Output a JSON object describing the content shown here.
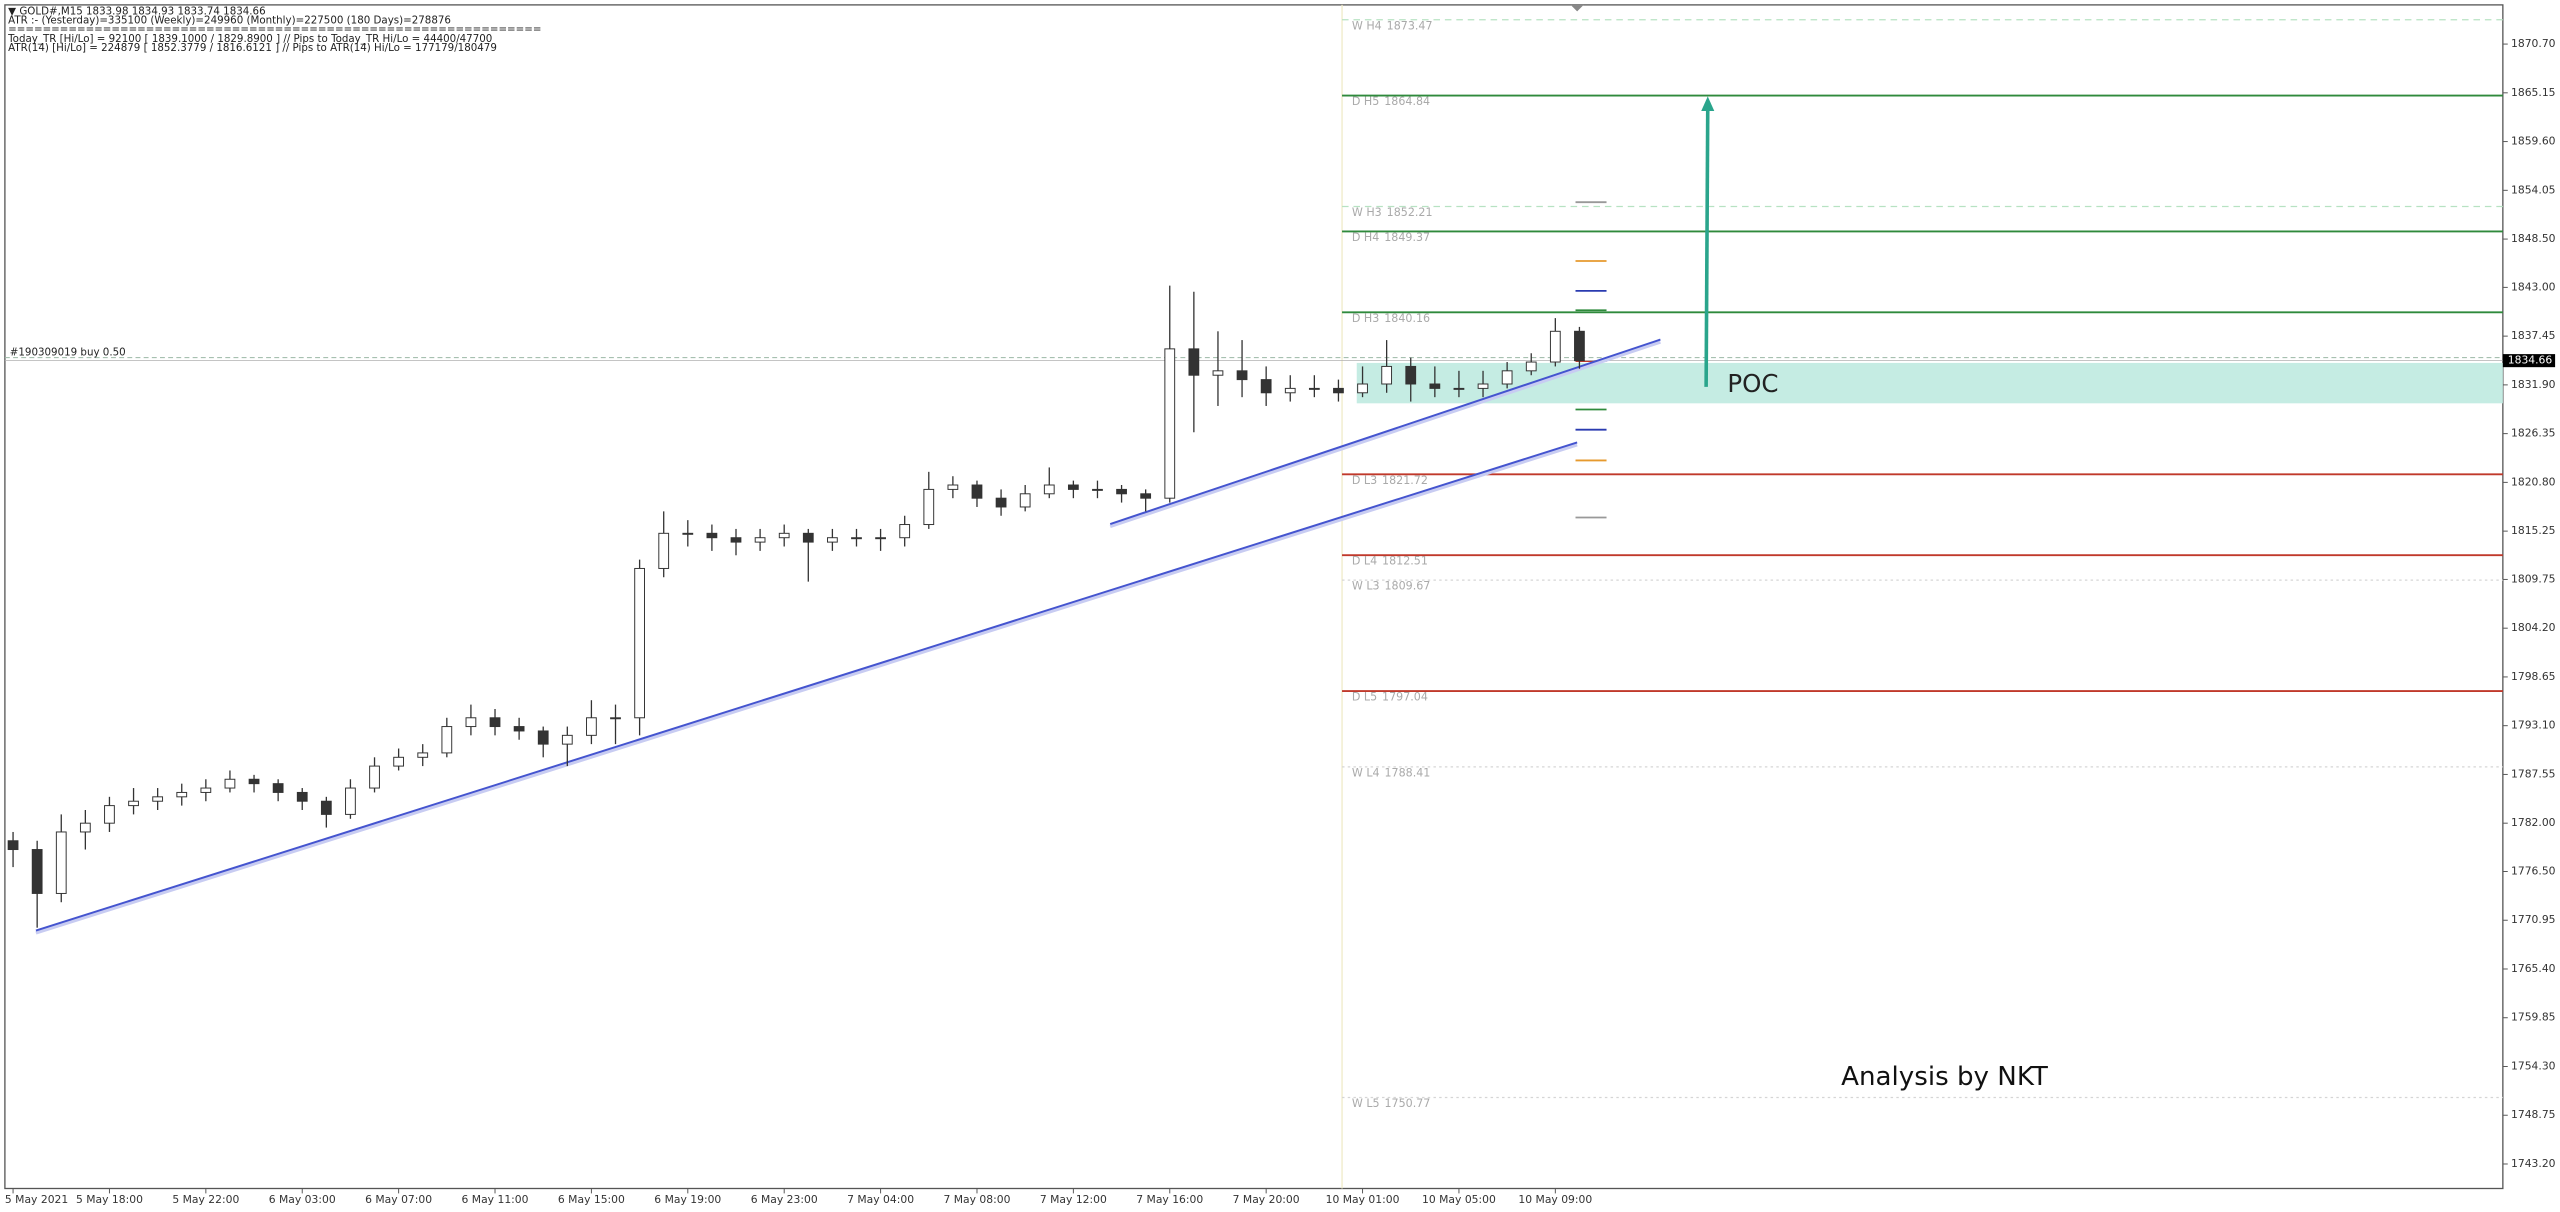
{
  "chart_data": {
    "type": "candlestick",
    "info_lines": [
      "▼ GOLD#,M15  1833.98 1834.93 1833.74 1834.66",
      "ATR :- (Yesterday)=335100     (Weekly)=249960     (Monthly)=227500     (180 Days)=278876",
      "==============================================================",
      "Today_TR [Hi/Lo] = 92100 [ 1839.1000 / 1829.8900 ]  // Pips to Today_TR Hi/Lo  = 44400/47700",
      "ATR(14)     [Hi/Lo] = 224879 [ 1852.3779 / 1816.6121 ]  // Pips to ATR(14) Hi/Lo      = 177179/180479"
    ],
    "categories": [
      "5 May 2021",
      null,
      null,
      null,
      "5 May 18:00",
      null,
      null,
      null,
      "5 May 22:00",
      null,
      null,
      null,
      "6 May 03:00",
      null,
      null,
      null,
      "6 May 07:00",
      null,
      null,
      null,
      "6 May 11:00",
      null,
      null,
      null,
      "6 May 15:00",
      null,
      null,
      null,
      "6 May 19:00",
      null,
      null,
      null,
      "6 May 23:00",
      null,
      null,
      null,
      "7 May 04:00",
      null,
      null,
      null,
      "7 May 08:00",
      null,
      null,
      null,
      "7 May 12:00",
      null,
      null,
      null,
      "7 May 16:00",
      null,
      null,
      null,
      "7 May 20:00",
      null,
      null,
      null,
      "10 May 01:00",
      null,
      null,
      null,
      "10 May 05:00",
      null,
      null,
      null,
      "10 May 09:00",
      null
    ],
    "candles": [
      [
        1780,
        1781,
        1777,
        1779
      ],
      [
        1779,
        1780,
        1770.1,
        1774
      ],
      [
        1774,
        1783,
        1773,
        1781
      ],
      [
        1781,
        1783.5,
        1779,
        1782
      ],
      [
        1782,
        1785,
        1781,
        1784
      ],
      [
        1784,
        1786,
        1783,
        1784.5
      ],
      [
        1784.5,
        1786,
        1783.5,
        1785
      ],
      [
        1785,
        1786.5,
        1784,
        1785.5
      ],
      [
        1785.5,
        1787,
        1784.5,
        1786
      ],
      [
        1786,
        1788,
        1785.5,
        1787
      ],
      [
        1787,
        1787.5,
        1785.5,
        1786.5
      ],
      [
        1786.5,
        1787,
        1784.5,
        1785.5
      ],
      [
        1785.5,
        1786,
        1783.5,
        1784.5
      ],
      [
        1784.5,
        1785,
        1781.5,
        1783
      ],
      [
        1783,
        1787,
        1782.5,
        1786
      ],
      [
        1786,
        1789.5,
        1785.5,
        1788.5
      ],
      [
        1788.5,
        1790.5,
        1788,
        1789.5
      ],
      [
        1789.5,
        1791,
        1788.5,
        1790
      ],
      [
        1790,
        1794,
        1789.5,
        1793
      ],
      [
        1793,
        1795.5,
        1792,
        1794
      ],
      [
        1794,
        1795,
        1792,
        1793
      ],
      [
        1793,
        1794,
        1791.5,
        1792.5
      ],
      [
        1792.5,
        1793,
        1789.5,
        1791
      ],
      [
        1791,
        1793,
        1788.5,
        1792
      ],
      [
        1792,
        1796,
        1791,
        1794
      ],
      [
        1794,
        1795.5,
        1791,
        1794
      ],
      [
        1794,
        1812,
        1792,
        1811
      ],
      [
        1811,
        1817.5,
        1810,
        1815
      ],
      [
        1815,
        1816.5,
        1813.5,
        1815
      ],
      [
        1815,
        1816,
        1813,
        1814.5
      ],
      [
        1814.5,
        1815.5,
        1812.5,
        1814
      ],
      [
        1814,
        1815.5,
        1813,
        1814.5
      ],
      [
        1814.5,
        1816,
        1813.5,
        1815
      ],
      [
        1815,
        1815.5,
        1809.5,
        1814
      ],
      [
        1814,
        1815.5,
        1813,
        1814.5
      ],
      [
        1814.5,
        1815.5,
        1813.5,
        1814.5
      ],
      [
        1814.5,
        1815.5,
        1813,
        1814.5
      ],
      [
        1814.5,
        1817,
        1813.5,
        1816
      ],
      [
        1816,
        1822,
        1815.5,
        1820
      ],
      [
        1820,
        1821.5,
        1819,
        1820.5
      ],
      [
        1820.5,
        1821,
        1818,
        1819
      ],
      [
        1819,
        1820,
        1817,
        1818
      ],
      [
        1818,
        1820.5,
        1817.5,
        1819.5
      ],
      [
        1819.5,
        1822.5,
        1819,
        1820.5
      ],
      [
        1820.5,
        1821,
        1819,
        1820
      ],
      [
        1820,
        1821,
        1819,
        1820
      ],
      [
        1820,
        1820.5,
        1818.5,
        1819.5
      ],
      [
        1819.5,
        1820,
        1817.5,
        1819
      ],
      [
        1819,
        1843.2,
        1818.5,
        1836
      ],
      [
        1836,
        1842.5,
        1826.5,
        1833
      ],
      [
        1833,
        1838,
        1829.5,
        1833.5
      ],
      [
        1833.5,
        1837,
        1830.5,
        1832.5
      ],
      [
        1832.5,
        1834,
        1829.5,
        1831
      ],
      [
        1831,
        1833,
        1830,
        1831.5
      ],
      [
        1831.5,
        1833,
        1830.5,
        1831.5
      ],
      [
        1831.5,
        1832.5,
        1830,
        1831
      ],
      [
        1831,
        1834,
        1830.5,
        1832
      ],
      [
        1832,
        1837,
        1831,
        1834
      ],
      [
        1834,
        1835,
        1830,
        1832
      ],
      [
        1832,
        1834,
        1830.5,
        1831.5
      ],
      [
        1831.5,
        1833.5,
        1830.5,
        1831.5
      ],
      [
        1831.5,
        1833.5,
        1830.5,
        1832
      ],
      [
        1832,
        1834.5,
        1831.5,
        1833.5
      ],
      [
        1833.5,
        1835.5,
        1833,
        1834.5
      ],
      [
        1834.5,
        1839.5,
        1834,
        1838
      ],
      [
        1838,
        1838.5,
        1833.74,
        1834.66
      ]
    ],
    "ylim": [
      1740.41,
      1875.16
    ],
    "yticks": [
      {
        "value": 1870.7,
        "label": "1870.70"
      },
      {
        "value": 1865.15,
        "label": "1865.15"
      },
      {
        "value": 1859.6,
        "label": "1859.60"
      },
      {
        "value": 1854.05,
        "label": "1854.05"
      },
      {
        "value": 1848.5,
        "label": "1848.50"
      },
      {
        "value": 1843,
        "label": "1843.00"
      },
      {
        "value": 1837.45,
        "label": "1837.45"
      },
      {
        "value": 1831.9,
        "label": "1831.90"
      },
      {
        "value": 1826.35,
        "label": "1826.35"
      },
      {
        "value": 1820.8,
        "label": "1820.80"
      },
      {
        "value": 1815.25,
        "label": "1815.25"
      },
      {
        "value": 1809.75,
        "label": "1809.75"
      },
      {
        "value": 1804.2,
        "label": "1804.20"
      },
      {
        "value": 1798.65,
        "label": "1798.65"
      },
      {
        "value": 1793.1,
        "label": "1793.10"
      },
      {
        "value": 1787.55,
        "label": "1787.55"
      },
      {
        "value": 1782,
        "label": "1782.00"
      },
      {
        "value": 1776.5,
        "label": "1776.50"
      },
      {
        "value": 1770.95,
        "label": "1770.95"
      },
      {
        "value": 1765.4,
        "label": "1765.40"
      },
      {
        "value": 1759.85,
        "label": "1759.85"
      },
      {
        "value": 1754.3,
        "label": "1754.30"
      },
      {
        "value": 1748.75,
        "label": "1748.75"
      },
      {
        "value": 1743.2,
        "label": "1743.20"
      }
    ],
    "levels": [
      {
        "name": "W  H4",
        "value": 1873.47,
        "color": "#b7e2c2",
        "style": "dashed"
      },
      {
        "name": "D  H5",
        "value": 1864.84,
        "color": "#2f8a3c",
        "style": "solid"
      },
      {
        "name": "W  H3",
        "value": 1852.21,
        "color": "#b7e2c2",
        "style": "dashed"
      },
      {
        "name": "D  H4",
        "value": 1849.37,
        "color": "#2f8a3c",
        "style": "solid"
      },
      {
        "name": "D  H3",
        "value": 1840.16,
        "color": "#2f8a3c",
        "style": "solid"
      },
      {
        "name": "D  L3",
        "value": 1821.72,
        "color": "#c0392b",
        "style": "solid"
      },
      {
        "name": "D  L4",
        "value": 1812.51,
        "color": "#c0392b",
        "style": "solid"
      },
      {
        "name": "W  L3",
        "value": 1809.67,
        "color": "#d5d5d5",
        "style": "dotted"
      },
      {
        "name": "D  L5",
        "value": 1797.04,
        "color": "#c0392b",
        "style": "solid"
      },
      {
        "name": "W  L4",
        "value": 1788.41,
        "color": "#d5d5d5",
        "style": "dotted"
      },
      {
        "name": "W  L5",
        "value": 1750.77,
        "color": "#d5d5d5",
        "style": "dotted"
      }
    ],
    "pivot_markers": [
      {
        "value": 1852.7,
        "color": "#999999"
      },
      {
        "value": 1846,
        "color": "#e69a2e"
      },
      {
        "value": 1842.6,
        "color": "#2a3bb0"
      },
      {
        "value": 1840.4,
        "color": "#2f8a3c"
      },
      {
        "value": 1834.6,
        "color": "#c0392b"
      },
      {
        "value": 1829.1,
        "color": "#2f8a3c"
      },
      {
        "value": 1826.8,
        "color": "#2a3bb0"
      },
      {
        "value": 1823.3,
        "color": "#e69a2e"
      },
      {
        "value": 1816.8,
        "color": "#999999"
      }
    ],
    "order_line": {
      "label": "#190309019 buy 0.50",
      "value": 1835
    },
    "current_price": 1834.66,
    "poc_zone": {
      "label": "POC",
      "range": [
        1829.8,
        1834.4
      ],
      "color": "#c5ece3"
    },
    "annotation": "Analysis by NKT"
  }
}
